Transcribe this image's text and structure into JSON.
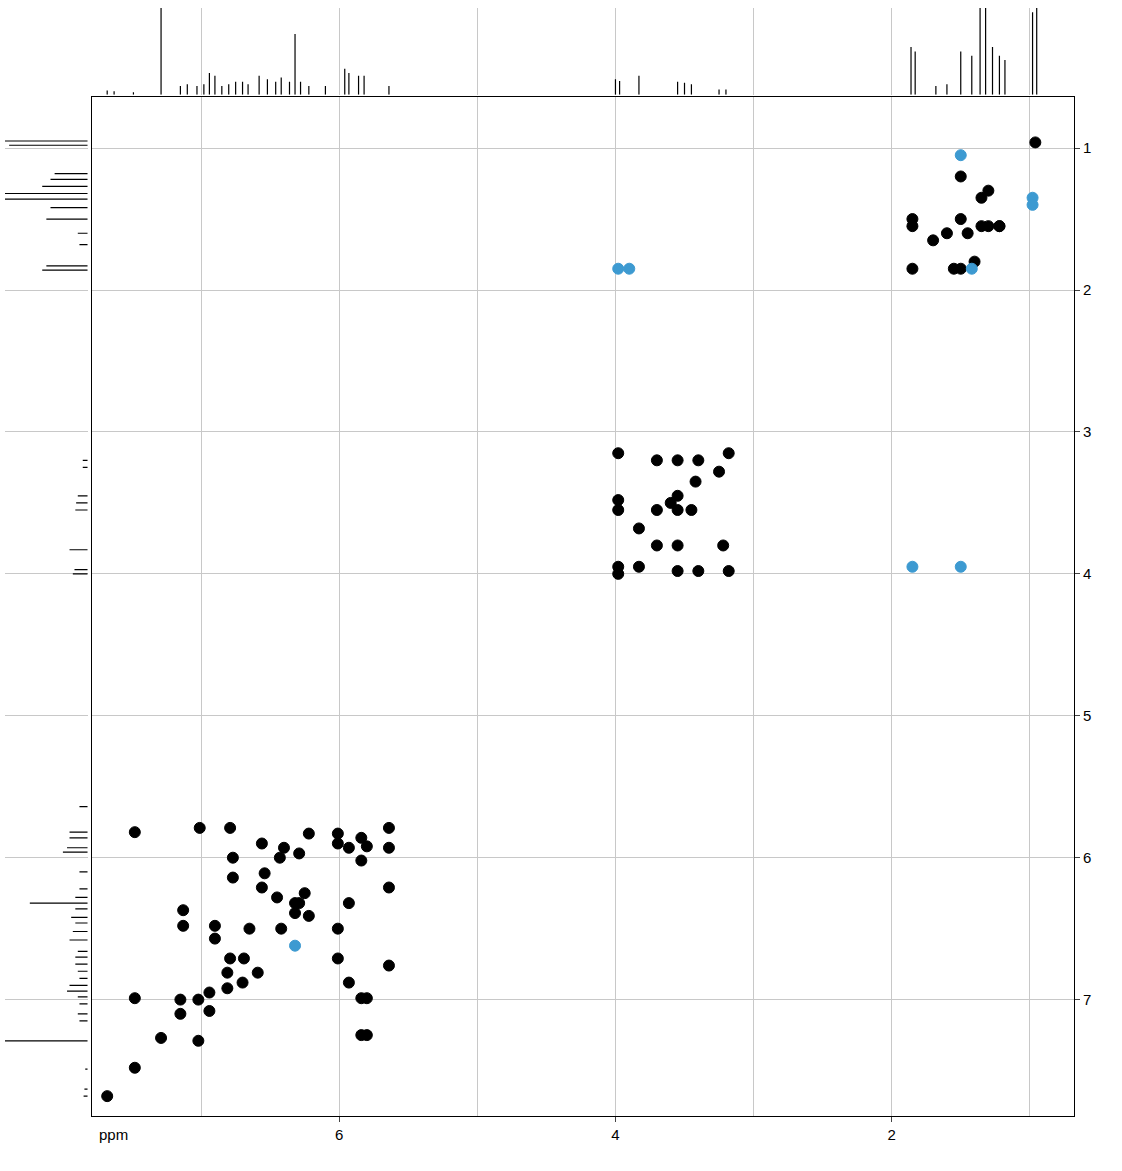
{
  "chart_data": {
    "type": "scatter",
    "x_label": "ppm",
    "xlim": [
      7.79,
      0.68
    ],
    "ylim": [
      7.82,
      0.64
    ],
    "xticks": [
      6,
      4,
      2
    ],
    "yticks": [
      1,
      2,
      3,
      4,
      5,
      6,
      7
    ],
    "grid": true,
    "series": [
      {
        "color": "#000000",
        "marker": "ellipse",
        "x": [
          7.68,
          7.48,
          7.48,
          7.48,
          7.29,
          7.15,
          7.15,
          7.02,
          6.94,
          6.94,
          7.13,
          7.13,
          6.9,
          6.9,
          6.79,
          6.69,
          6.59,
          6.7,
          6.81,
          6.81,
          7.01,
          6.79,
          6.56,
          6.77,
          6.77,
          6.54,
          6.56,
          6.45,
          6.32,
          6.42,
          6.29,
          6.25,
          6.22,
          6.4,
          6.29,
          6.22,
          6.01,
          6.01,
          6.01,
          6.01,
          5.93,
          5.93,
          5.93,
          5.84,
          5.84,
          5.84,
          5.84,
          5.8,
          5.8,
          5.8,
          5.64,
          5.64,
          5.64,
          5.64,
          6.65,
          6.43,
          7.02,
          6.32,
          3.98,
          3.98,
          3.98,
          3.98,
          3.98,
          3.83,
          3.83,
          3.7,
          3.7,
          3.7,
          3.55,
          3.55,
          3.55,
          3.55,
          3.55,
          3.4,
          3.42,
          3.4,
          3.25,
          3.22,
          3.18,
          3.18,
          3.45,
          3.6,
          0.96,
          1.35,
          1.3,
          1.22,
          1.5,
          1.85,
          1.85,
          1.85,
          1.55,
          1.5,
          1.7,
          1.6,
          1.45,
          1.35,
          1.3,
          1.22,
          1.4,
          1.5
        ],
        "y": [
          7.68,
          5.82,
          6.99,
          7.48,
          7.27,
          7.0,
          7.1,
          7.0,
          7.08,
          6.95,
          6.37,
          6.48,
          6.48,
          6.57,
          6.71,
          6.71,
          6.81,
          6.88,
          6.81,
          6.92,
          5.79,
          5.79,
          5.9,
          6.0,
          6.14,
          6.11,
          6.21,
          6.28,
          6.39,
          6.5,
          6.32,
          6.25,
          6.41,
          5.93,
          5.97,
          5.83,
          5.83,
          5.9,
          6.5,
          6.71,
          5.93,
          6.32,
          6.88,
          5.86,
          6.02,
          7.25,
          6.99,
          7.25,
          6.99,
          5.92,
          5.79,
          5.93,
          6.21,
          6.76,
          6.5,
          6.0,
          7.29,
          6.32,
          3.15,
          3.48,
          3.55,
          3.95,
          4.0,
          3.68,
          3.95,
          3.2,
          3.55,
          3.8,
          3.2,
          3.45,
          3.55,
          3.8,
          3.98,
          3.2,
          3.35,
          3.98,
          3.28,
          3.8,
          3.15,
          3.98,
          3.55,
          3.5,
          0.96,
          1.35,
          1.3,
          1.55,
          1.5,
          1.85,
          1.55,
          1.5,
          1.85,
          1.85,
          1.65,
          1.6,
          1.6,
          1.55,
          1.55,
          1.55,
          1.8,
          1.2
        ]
      },
      {
        "color": "#3d9ad1",
        "marker": "ellipse",
        "x": [
          1.5,
          0.98,
          0.98,
          3.98,
          3.9,
          1.85,
          1.5,
          6.32,
          1.42
        ],
        "y": [
          1.05,
          1.35,
          1.4,
          1.85,
          1.85,
          3.95,
          3.95,
          6.62,
          1.85
        ]
      }
    ],
    "projection": {
      "ppm": [
        7.68,
        7.63,
        7.49,
        7.29,
        7.15,
        7.1,
        7.03,
        6.98,
        6.94,
        6.9,
        6.85,
        6.8,
        6.75,
        6.7,
        6.66,
        6.58,
        6.52,
        6.46,
        6.42,
        6.36,
        6.32,
        6.28,
        6.22,
        6.1,
        5.96,
        5.93,
        5.86,
        5.82,
        5.64,
        4.0,
        3.97,
        3.83,
        3.55,
        3.5,
        3.45,
        3.25,
        3.2,
        1.86,
        1.83,
        1.68,
        1.6,
        1.5,
        1.42,
        1.36,
        1.32,
        1.27,
        1.22,
        1.18,
        0.98,
        0.95
      ],
      "intensity": [
        5,
        4,
        3,
        100,
        10,
        12,
        10,
        12,
        25,
        22,
        10,
        12,
        15,
        15,
        12,
        22,
        18,
        15,
        20,
        15,
        70,
        15,
        10,
        10,
        30,
        25,
        22,
        22,
        10,
        18,
        16,
        22,
        15,
        14,
        12,
        6,
        6,
        55,
        50,
        10,
        12,
        50,
        45,
        100,
        100,
        55,
        45,
        40,
        95,
        100
      ]
    }
  }
}
